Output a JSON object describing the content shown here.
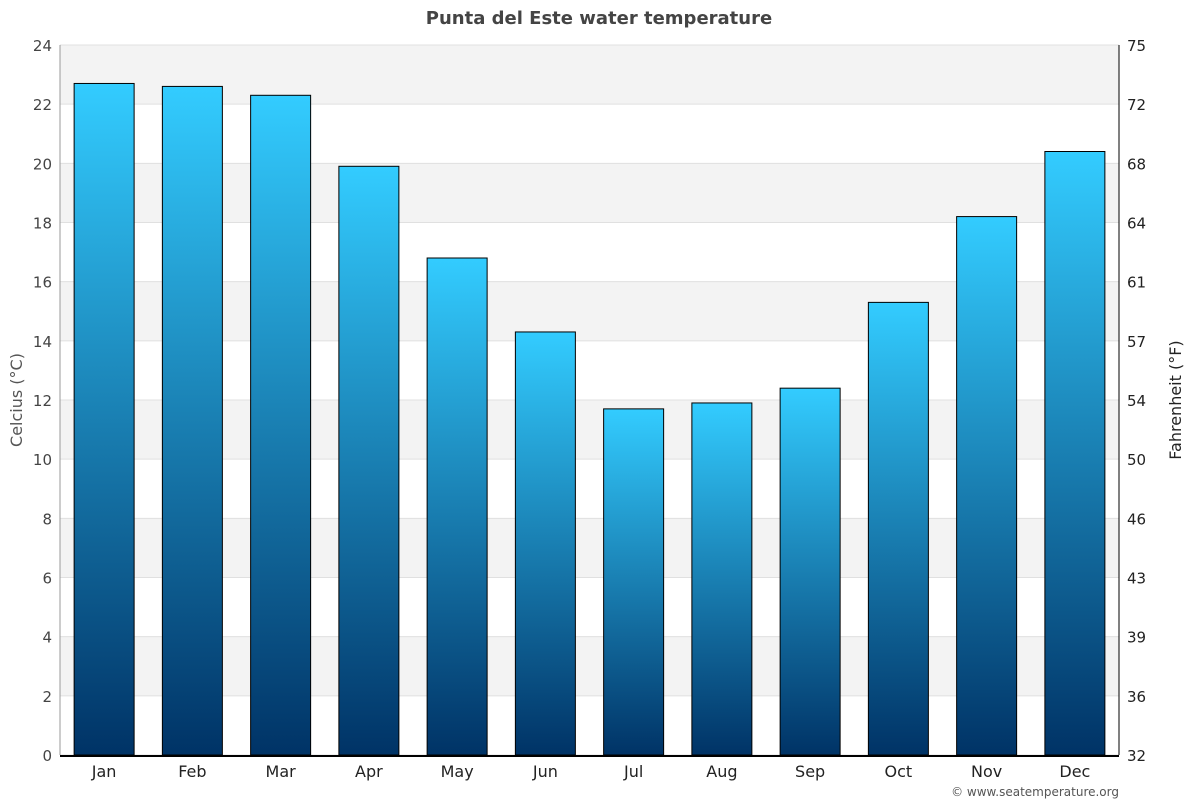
{
  "chart_data": {
    "type": "bar",
    "title": "Punta del Este water temperature",
    "ylabel": "Celcius (°C)",
    "y2label": "Fahrenheit (°F)",
    "categories": [
      "Jan",
      "Feb",
      "Mar",
      "Apr",
      "May",
      "Jun",
      "Jul",
      "Aug",
      "Sep",
      "Oct",
      "Nov",
      "Dec"
    ],
    "values": [
      22.7,
      22.6,
      22.3,
      19.9,
      16.8,
      14.3,
      11.7,
      11.9,
      12.4,
      15.3,
      18.2,
      20.4
    ],
    "ylim": [
      0,
      24
    ],
    "yticks": [
      0,
      2,
      4,
      6,
      8,
      10,
      12,
      14,
      16,
      18,
      20,
      22,
      24
    ],
    "y2ticks": [
      "32",
      "36",
      "39",
      "43",
      "46",
      "50",
      "54",
      "57",
      "61",
      "64",
      "68",
      "72",
      "75"
    ],
    "grid": true,
    "colors": {
      "bar_top": "#33ccff",
      "bar_bottom": "#003366",
      "band": "#f3f3f3",
      "grid": "#e0e0e0"
    }
  },
  "credit": "© www.seatemperature.org"
}
